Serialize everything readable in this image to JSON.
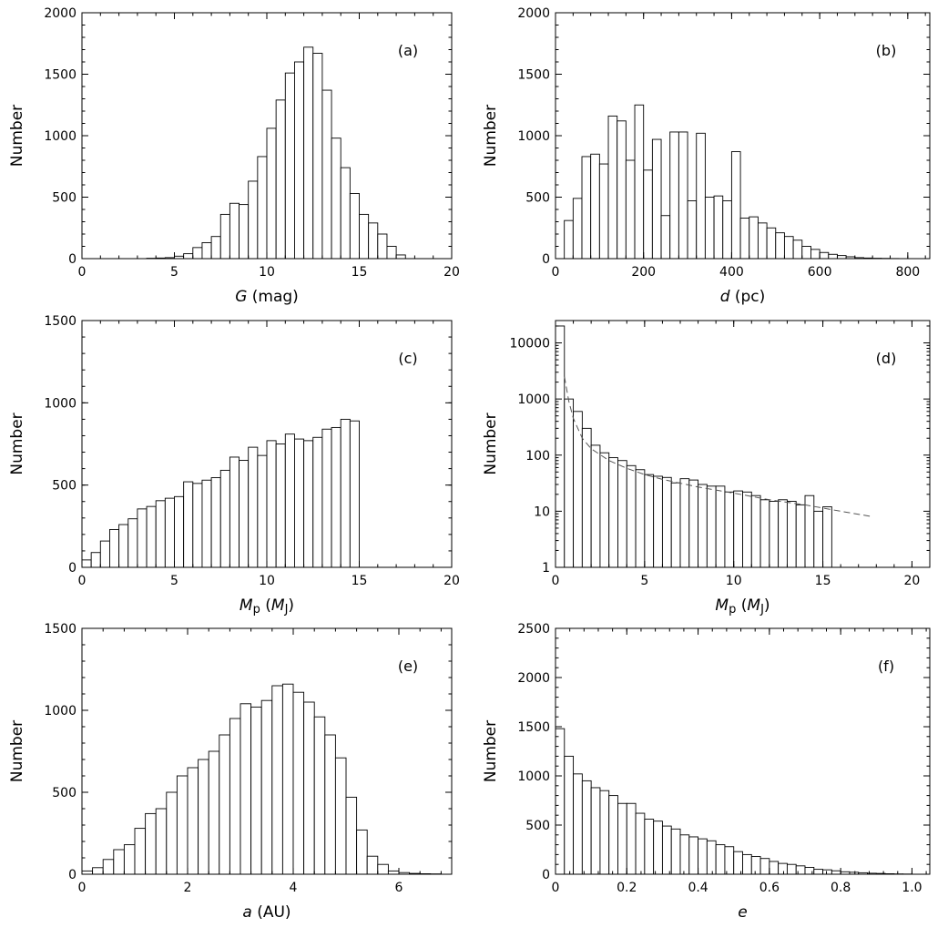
{
  "chart_data": [
    {
      "id": "a",
      "type": "bar",
      "panel_label": "(a)",
      "xlabel": [
        {
          "text": "G",
          "italic": true
        },
        {
          "text": " (mag)"
        }
      ],
      "ylabel": "Number",
      "xlim": [
        0,
        20
      ],
      "ylim": [
        0,
        2000
      ],
      "xticks": [
        0,
        5,
        10,
        15,
        20
      ],
      "yticks": [
        0,
        500,
        1000,
        1500,
        2000
      ],
      "bin_width": 0.5,
      "bin_start": [
        3.5,
        4.0,
        4.5,
        5.0,
        5.5,
        6.0,
        6.5,
        7.0,
        7.5,
        8.0,
        8.5,
        9.0,
        9.5,
        10.0,
        10.5,
        11.0,
        11.5,
        12.0,
        12.5,
        13.0,
        13.5,
        14.0,
        14.5,
        15.0,
        15.5,
        16.0,
        16.5,
        17.0
      ],
      "values": [
        3,
        5,
        8,
        20,
        40,
        90,
        130,
        180,
        360,
        450,
        440,
        630,
        830,
        1060,
        1290,
        1510,
        1600,
        1720,
        1670,
        1370,
        980,
        740,
        530,
        360,
        290,
        200,
        100,
        30
      ]
    },
    {
      "id": "b",
      "type": "bar",
      "panel_label": "(b)",
      "xlabel": [
        {
          "text": "d",
          "italic": true
        },
        {
          "text": " (pc)"
        }
      ],
      "ylabel": "Number",
      "xlim": [
        0,
        850
      ],
      "ylim": [
        0,
        2000
      ],
      "xticks": [
        0,
        200,
        400,
        600,
        800
      ],
      "yticks": [
        0,
        500,
        1000,
        1500,
        2000
      ],
      "bin_width": 20,
      "bin_start": [
        20,
        40,
        60,
        80,
        100,
        120,
        140,
        160,
        180,
        200,
        220,
        240,
        260,
        280,
        300,
        320,
        340,
        360,
        380,
        400,
        420,
        440,
        460,
        480,
        500,
        520,
        540,
        560,
        580,
        600,
        620,
        640,
        660,
        680,
        700,
        720,
        740,
        760
      ],
      "values": [
        310,
        490,
        830,
        850,
        770,
        1160,
        1120,
        800,
        1250,
        720,
        970,
        350,
        1030,
        1030,
        470,
        1020,
        500,
        510,
        470,
        870,
        330,
        340,
        290,
        250,
        210,
        180,
        150,
        100,
        75,
        50,
        35,
        25,
        15,
        8,
        5,
        3,
        2,
        1
      ]
    },
    {
      "id": "c",
      "type": "bar",
      "panel_label": "(c)",
      "xlabel": [
        {
          "text": "M",
          "italic": true
        },
        {
          "text": "p",
          "sub": true
        },
        {
          "text": " ("
        },
        {
          "text": "M",
          "italic": true
        },
        {
          "text": "J",
          "sub": true
        },
        {
          "text": ")"
        }
      ],
      "ylabel": "Number",
      "xlim": [
        0,
        20
      ],
      "ylim": [
        0,
        1500
      ],
      "xticks": [
        0,
        5,
        10,
        15,
        20
      ],
      "yticks": [
        0,
        500,
        1000,
        1500
      ],
      "bin_width": 0.5,
      "bin_start": [
        0.0,
        0.5,
        1.0,
        1.5,
        2.0,
        2.5,
        3.0,
        3.5,
        4.0,
        4.5,
        5.0,
        5.5,
        6.0,
        6.5,
        7.0,
        7.5,
        8.0,
        8.5,
        9.0,
        9.5,
        10.0,
        10.5,
        11.0,
        11.5,
        12.0,
        12.5,
        13.0,
        13.5,
        14.0,
        14.5
      ],
      "values": [
        45,
        90,
        160,
        230,
        260,
        295,
        355,
        370,
        405,
        420,
        430,
        520,
        510,
        530,
        545,
        590,
        670,
        650,
        730,
        680,
        770,
        750,
        810,
        780,
        770,
        790,
        840,
        850,
        900,
        890
      ]
    },
    {
      "id": "d",
      "type": "bar",
      "yscale": "log",
      "panel_label": "(d)",
      "xlabel": [
        {
          "text": "M",
          "italic": true
        },
        {
          "text": "p",
          "sub": true
        },
        {
          "text": " ("
        },
        {
          "text": "M",
          "italic": true
        },
        {
          "text": "J",
          "sub": true
        },
        {
          "text": ")"
        }
      ],
      "ylabel": "Number",
      "xlim": [
        0,
        21
      ],
      "ylim": [
        1,
        25000
      ],
      "xticks": [
        0,
        5,
        10,
        15,
        20
      ],
      "yticks": [
        1,
        10,
        100,
        1000,
        10000
      ],
      "bin_width": 0.5,
      "bin_start": [
        0.0,
        0.5,
        1.0,
        1.5,
        2.0,
        2.5,
        3.0,
        3.5,
        4.0,
        4.5,
        5.0,
        5.5,
        6.0,
        6.5,
        7.0,
        7.5,
        8.0,
        8.5,
        9.0,
        9.5,
        10.0,
        10.5,
        11.0,
        11.5,
        12.0,
        12.5,
        13.0,
        13.5,
        14.0,
        14.5,
        15.0
      ],
      "values": [
        20000,
        1000,
        600,
        300,
        150,
        110,
        90,
        80,
        65,
        55,
        45,
        42,
        40,
        32,
        38,
        36,
        30,
        28,
        28,
        22,
        23,
        22,
        19,
        16,
        15,
        16,
        15,
        13,
        19,
        10,
        12
      ],
      "fit_curve": {
        "style": "dashed",
        "x": [
          0.5,
          0.75,
          1.0,
          1.5,
          2.0,
          3.0,
          4.0,
          5.0,
          6.0,
          8.0,
          10.0,
          12.0,
          14.0,
          16.0,
          17.8
        ],
        "y": [
          2500,
          900,
          450,
          200,
          130,
          80,
          58,
          45,
          37,
          27,
          21,
          16,
          13,
          10,
          8
        ]
      }
    },
    {
      "id": "e",
      "type": "bar",
      "panel_label": "(e)",
      "xlabel": [
        {
          "text": "a",
          "italic": true
        },
        {
          "text": " (AU)"
        }
      ],
      "ylabel": "Number",
      "xlim": [
        0,
        7
      ],
      "ylim": [
        0,
        1500
      ],
      "xticks": [
        0,
        2,
        4,
        6
      ],
      "yticks": [
        0,
        500,
        1000,
        1500
      ],
      "bin_width": 0.2,
      "bin_start": [
        0.0,
        0.2,
        0.4,
        0.6,
        0.8,
        1.0,
        1.2,
        1.4,
        1.6,
        1.8,
        2.0,
        2.2,
        2.4,
        2.6,
        2.8,
        3.0,
        3.2,
        3.4,
        3.6,
        3.8,
        4.0,
        4.2,
        4.4,
        4.6,
        4.8,
        5.0,
        5.2,
        5.4,
        5.6,
        5.8,
        6.0,
        6.2,
        6.4,
        6.6
      ],
      "values": [
        20,
        40,
        90,
        150,
        180,
        280,
        370,
        400,
        500,
        600,
        650,
        700,
        750,
        850,
        950,
        1040,
        1020,
        1060,
        1150,
        1160,
        1110,
        1050,
        960,
        850,
        710,
        470,
        270,
        110,
        60,
        20,
        10,
        5,
        3,
        2
      ]
    },
    {
      "id": "f",
      "type": "bar",
      "panel_label": "(f)",
      "xlabel": [
        {
          "text": "e",
          "italic": true
        }
      ],
      "ylabel": "Number",
      "xlim": [
        0,
        1.05
      ],
      "ylim": [
        0,
        2500
      ],
      "xticks": [
        0,
        0.2,
        0.4,
        0.6,
        0.8,
        1.0
      ],
      "xtick_labels": [
        "0",
        "0.2",
        "0.4",
        "0.6",
        "0.8",
        "1.0"
      ],
      "yticks": [
        0,
        500,
        1000,
        1500,
        2000,
        2500
      ],
      "bin_width": 0.025,
      "bin_start": [
        0.0,
        0.025,
        0.05,
        0.075,
        0.1,
        0.125,
        0.15,
        0.175,
        0.2,
        0.225,
        0.25,
        0.275,
        0.3,
        0.325,
        0.35,
        0.375,
        0.4,
        0.425,
        0.45,
        0.475,
        0.5,
        0.525,
        0.55,
        0.575,
        0.6,
        0.625,
        0.65,
        0.675,
        0.7,
        0.725,
        0.75,
        0.775,
        0.8,
        0.825,
        0.85,
        0.875,
        0.9,
        0.925,
        0.95,
        0.975
      ],
      "values": [
        1480,
        1200,
        1020,
        950,
        880,
        850,
        800,
        720,
        720,
        620,
        560,
        540,
        490,
        460,
        400,
        380,
        360,
        340,
        300,
        280,
        230,
        200,
        180,
        160,
        130,
        110,
        100,
        85,
        70,
        50,
        45,
        35,
        25,
        20,
        15,
        10,
        8,
        5,
        3,
        2
      ]
    }
  ]
}
